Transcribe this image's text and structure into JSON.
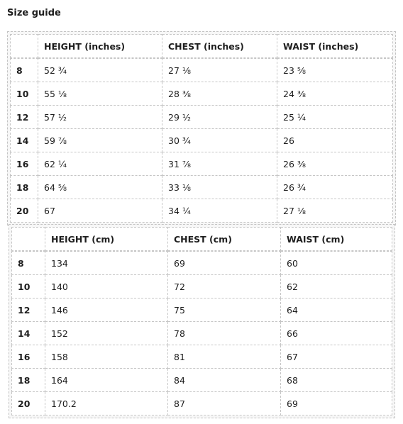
{
  "title": "Size guide",
  "inches_table": {
    "headers": [
      "",
      "HEIGHT (inches)",
      "CHEST (inches)",
      "WAIST (inches)"
    ],
    "rows": [
      [
        "8",
        "52 ¾",
        "27 ⅛",
        "23 ⅝"
      ],
      [
        "10",
        "55 ⅛",
        "28 ⅜",
        "24 ⅜"
      ],
      [
        "12",
        "57 ½",
        "29 ½",
        "25 ¼"
      ],
      [
        "14",
        "59 ⅞",
        "30 ¾",
        "26"
      ],
      [
        "16",
        "62 ¼",
        "31 ⅞",
        "26 ⅜"
      ],
      [
        "18",
        "64 ⅝",
        "33 ⅛",
        "26 ¾"
      ],
      [
        "20",
        "67",
        "34 ¼",
        "27 ⅛"
      ]
    ]
  },
  "cm_table": {
    "headers": [
      "",
      "HEIGHT (cm)",
      "CHEST (cm)",
      "WAIST (cm)"
    ],
    "rows": [
      [
        "8",
        "134",
        "69",
        "60"
      ],
      [
        "10",
        "140",
        "72",
        "62"
      ],
      [
        "12",
        "146",
        "75",
        "64"
      ],
      [
        "14",
        "152",
        "78",
        "66"
      ],
      [
        "16",
        "158",
        "81",
        "67"
      ],
      [
        "18",
        "164",
        "84",
        "68"
      ],
      [
        "20",
        "170.2",
        "87",
        "69"
      ]
    ]
  }
}
